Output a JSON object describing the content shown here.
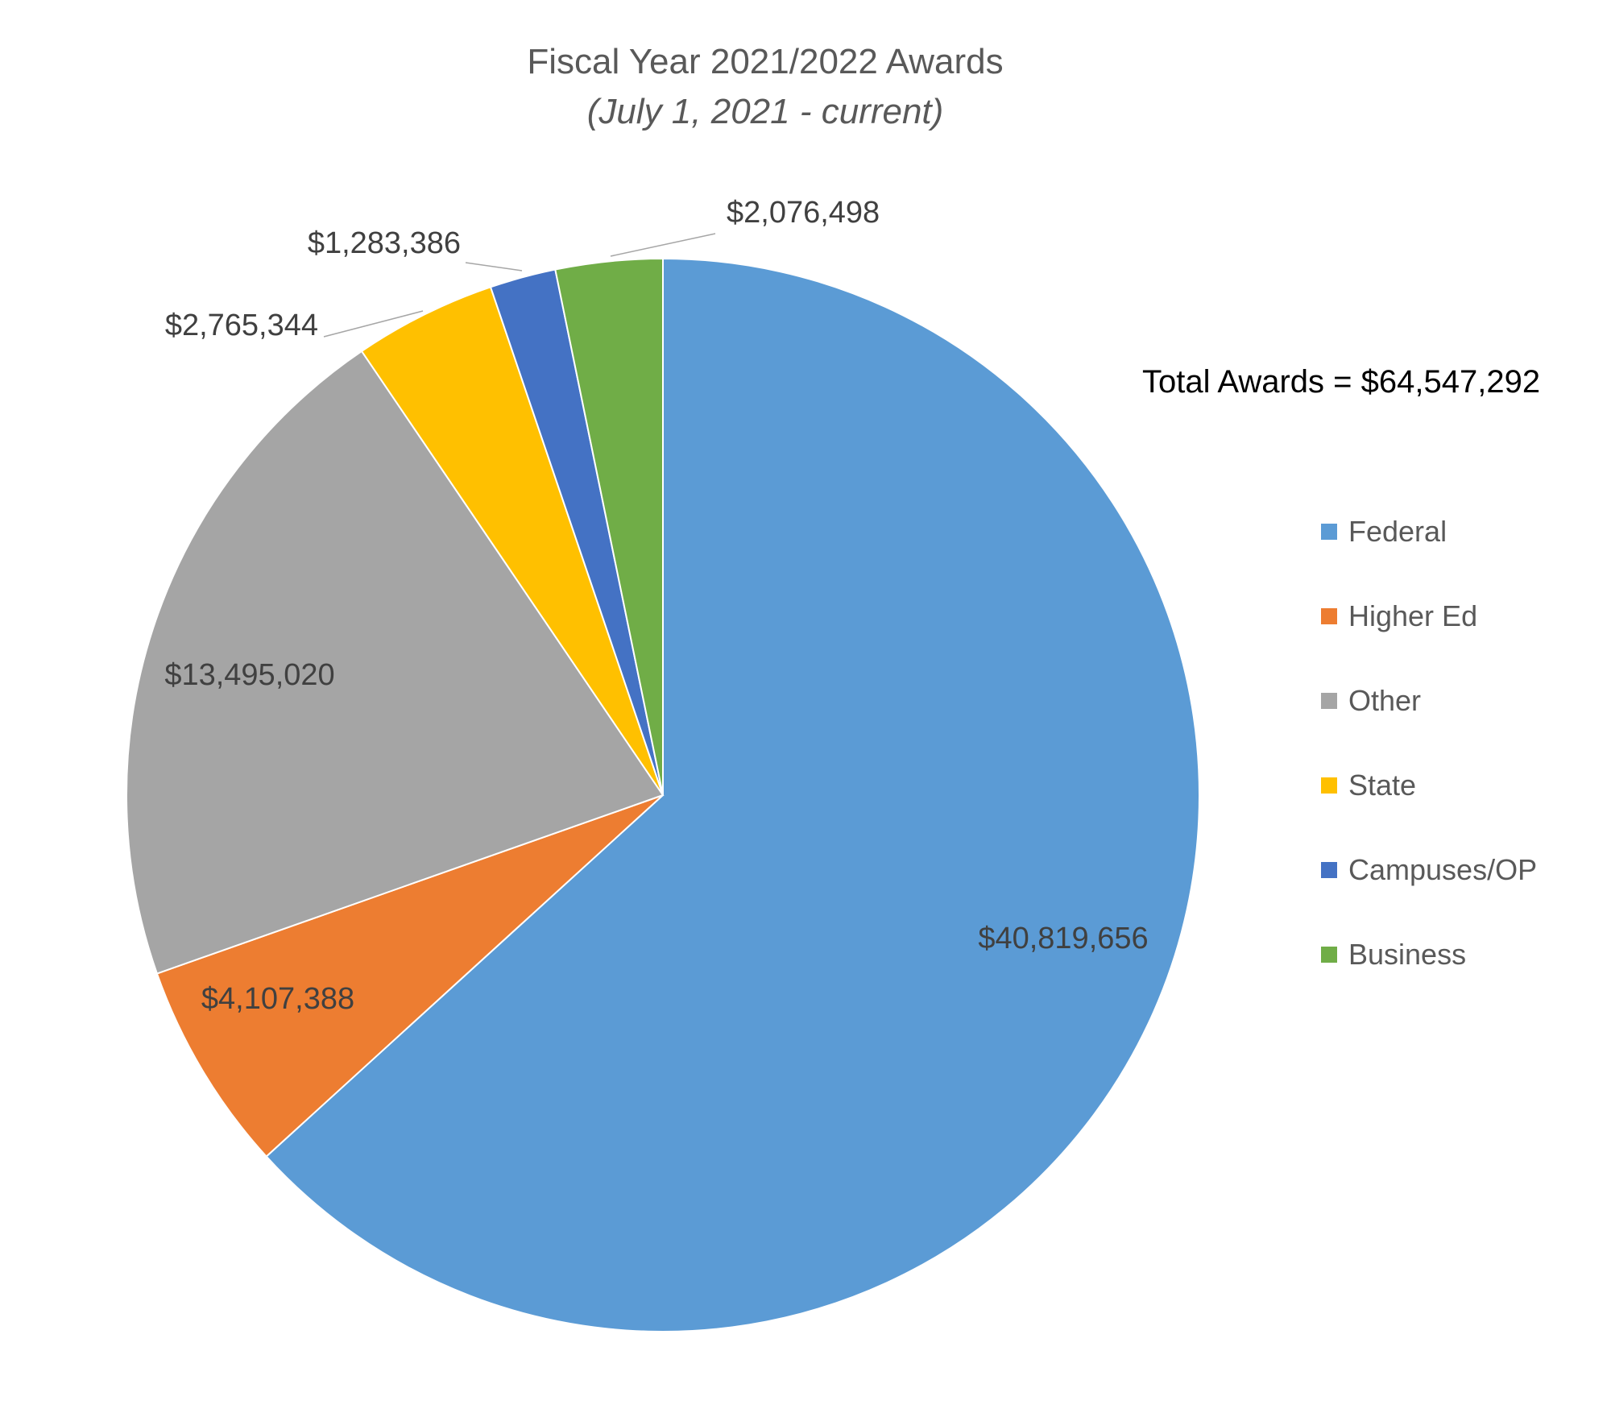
{
  "chart_data": {
    "type": "pie",
    "title": "Fiscal Year 2021/2022 Awards",
    "subtitle": "(July 1, 2021 - current)",
    "annotation": "Total Awards = $64,547,292",
    "legend_position": "right",
    "slices": [
      {
        "name": "Federal",
        "value": 40819656,
        "label": "$40,819,656",
        "color": "#5B9BD5"
      },
      {
        "name": "Higher Ed",
        "value": 4107388,
        "label": "$4,107,388",
        "color": "#ED7D31"
      },
      {
        "name": "Other",
        "value": 13495020,
        "label": "$13,495,020",
        "color": "#A5A5A5"
      },
      {
        "name": "State",
        "value": 2765344,
        "label": "$2,765,344",
        "color": "#FFC000"
      },
      {
        "name": "Campuses/OP",
        "value": 1283386,
        "label": "$1,283,386",
        "color": "#4472C4"
      },
      {
        "name": "Business",
        "value": 2076498,
        "label": "$2,076,498",
        "color": "#70AD47"
      }
    ]
  }
}
